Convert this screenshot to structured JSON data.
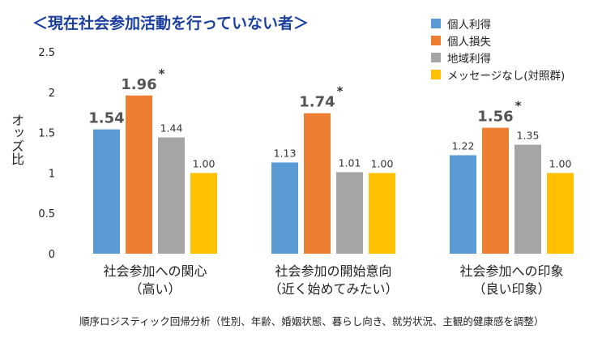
{
  "title": "＜現在社会参加活動を行っていない者＞",
  "footnote": "順序ロジスティック回帰分析（性別、年齢、婚姻状態、暮らし向き、就労状況、主観的健康感を調整）",
  "chart_data": {
    "type": "bar",
    "ylabel": "オッズ比",
    "ylim": [
      0,
      2.5
    ],
    "yticks": [
      "0",
      "0.5",
      "1",
      "1.5",
      "2",
      "2.5"
    ],
    "categories": [
      [
        "社会参加への関心",
        "（高い）"
      ],
      [
        "社会参加の開始意向",
        "（近く始めてみたい）"
      ],
      [
        "社会参加への印象",
        "（良い印象）"
      ]
    ],
    "series": [
      {
        "name": "個人利得",
        "color": "#5b9bd5",
        "values": [
          1.54,
          1.13,
          1.22
        ],
        "labels": [
          "1.54",
          "1.13",
          "1.22"
        ],
        "emphasis": [
          true,
          false,
          false
        ],
        "significant": [
          true,
          false,
          false
        ]
      },
      {
        "name": "個人損失",
        "color": "#ed7d31",
        "values": [
          1.96,
          1.74,
          1.56
        ],
        "labels": [
          "1.96",
          "1.74",
          "1.56"
        ],
        "emphasis": [
          true,
          true,
          true
        ],
        "significant": [
          true,
          true,
          true
        ]
      },
      {
        "name": "地域利得",
        "color": "#a5a5a5",
        "values": [
          1.44,
          1.01,
          1.35
        ],
        "labels": [
          "1.44",
          "1.01",
          "1.35"
        ],
        "emphasis": [
          false,
          false,
          false
        ],
        "significant": [
          false,
          false,
          false
        ]
      },
      {
        "name": "メッセージなし(対照群)",
        "color": "#ffc000",
        "values": [
          1.0,
          1.0,
          1.0
        ],
        "labels": [
          "1.00",
          "1.00",
          "1.00"
        ],
        "emphasis": [
          false,
          false,
          false
        ],
        "significant": [
          false,
          false,
          false
        ]
      }
    ],
    "significance_marker": "*",
    "grid": false,
    "legend_position": "top-right"
  }
}
